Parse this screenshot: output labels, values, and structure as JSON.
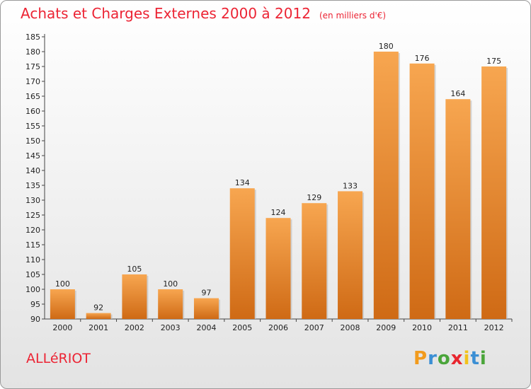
{
  "header": {
    "title": "Achats et Charges Externes 2000 à 2012",
    "unit": "(en milliers d'€)"
  },
  "commune": "ALLéRIOT",
  "logo": {
    "letters": [
      "P",
      "r",
      "o",
      "x",
      "i",
      "t",
      "i"
    ],
    "colors": [
      "#f29b1d",
      "#3b8fd4",
      "#4aa53a",
      "#e8262f",
      "#f2c21b",
      "#3b8fd4",
      "#4aa53a"
    ]
  },
  "colors": {
    "bar_top": "#f7a650",
    "bar_bottom": "#cf6a15",
    "title": "#ec2434"
  },
  "chart_data": {
    "type": "bar",
    "title": "Achats et Charges Externes 2000 à 2012",
    "subtitle": "(en milliers d'€)",
    "categories": [
      "2000",
      "2001",
      "2002",
      "2003",
      "2004",
      "2005",
      "2006",
      "2007",
      "2008",
      "2009",
      "2010",
      "2011",
      "2012"
    ],
    "values": [
      100,
      92,
      105,
      100,
      97,
      134,
      124,
      129,
      133,
      180,
      176,
      164,
      175
    ],
    "data_labels": [
      "100",
      "92",
      "105",
      "100",
      "97",
      "134",
      "124",
      "129",
      "133",
      "180",
      "176",
      "164",
      "175"
    ],
    "ylim": [
      90,
      185
    ],
    "yticks": [
      90,
      95,
      100,
      105,
      110,
      115,
      120,
      125,
      130,
      135,
      140,
      145,
      150,
      155,
      160,
      165,
      170,
      175,
      180,
      185
    ],
    "grid": false,
    "xlabel": "",
    "ylabel": ""
  }
}
